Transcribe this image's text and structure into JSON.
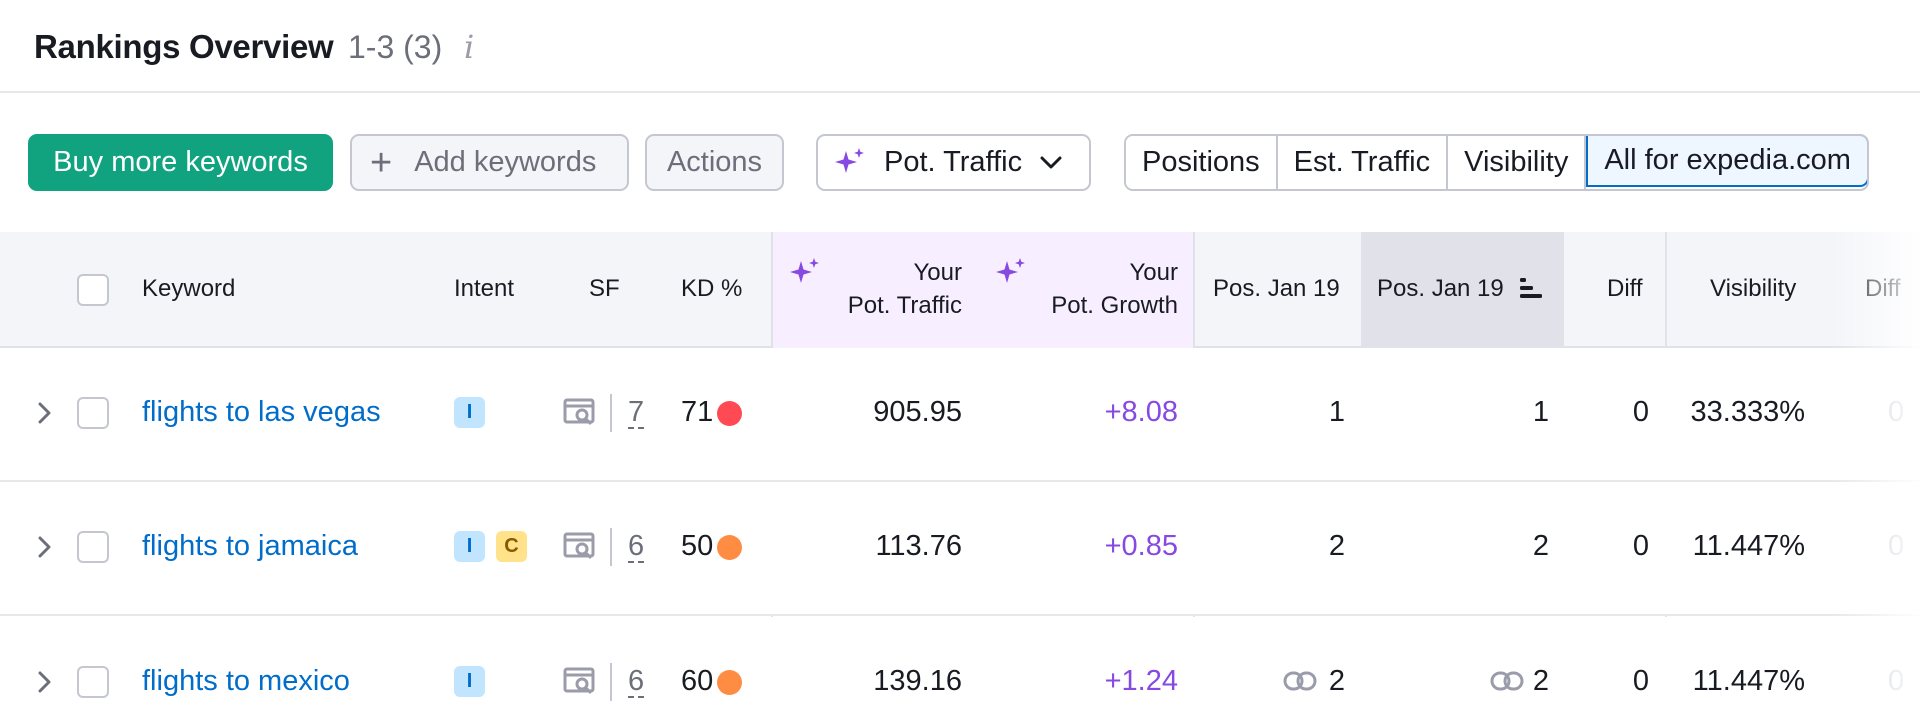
{
  "header": {
    "title": "Rankings Overview",
    "count": "1-3 (3)",
    "info_glyph": "i"
  },
  "toolbar": {
    "buy_label": "Buy more keywords",
    "add_label": "Add keywords",
    "actions_label": "Actions",
    "pot_label": "Pot. Traffic",
    "segments": [
      "Positions",
      "Est. Traffic",
      "Visibility",
      "All for expedia.com"
    ]
  },
  "columns": {
    "keyword": "Keyword",
    "intent": "Intent",
    "sf": "SF",
    "kd": "KD %",
    "pot_traffic_1": "Your",
    "pot_traffic_2": "Pot. Traffic",
    "pot_growth_1": "Your",
    "pot_growth_2": "Pot. Growth",
    "pos1": "Pos. Jan 19",
    "pos2": "Pos. Jan 19",
    "diff": "Diff",
    "visibility": "Visibility",
    "diff2": "Diff"
  },
  "rows": [
    {
      "keyword": "flights to las vegas",
      "intents": [
        "I"
      ],
      "sf": "7",
      "kd": "71",
      "kd_color": "#ff4953",
      "pot_traffic": "905.95",
      "pot_growth": "+8.08",
      "pos1": "1",
      "pos2": "1",
      "link1": false,
      "link2": false,
      "diff": "0",
      "visibility": "33.333%",
      "diff2": "0"
    },
    {
      "keyword": "flights to jamaica",
      "intents": [
        "I",
        "C"
      ],
      "sf": "6",
      "kd": "50",
      "kd_color": "#ff8c43",
      "pot_traffic": "113.76",
      "pot_growth": "+0.85",
      "pos1": "2",
      "pos2": "2",
      "link1": false,
      "link2": false,
      "diff": "0",
      "visibility": "11.447%",
      "diff2": "0"
    },
    {
      "keyword": "flights to mexico",
      "intents": [
        "I"
      ],
      "sf": "6",
      "kd": "60",
      "kd_color": "#ff8c43",
      "pot_traffic": "139.16",
      "pot_growth": "+1.24",
      "pos1": "2",
      "pos2": "2",
      "link1": true,
      "link2": true,
      "diff": "0",
      "visibility": "11.447%",
      "diff2": "0"
    }
  ],
  "colors": {
    "primary": "#11a37f",
    "link": "#006dca",
    "growth": "#8649e1",
    "sparkle": "#8649e1"
  }
}
